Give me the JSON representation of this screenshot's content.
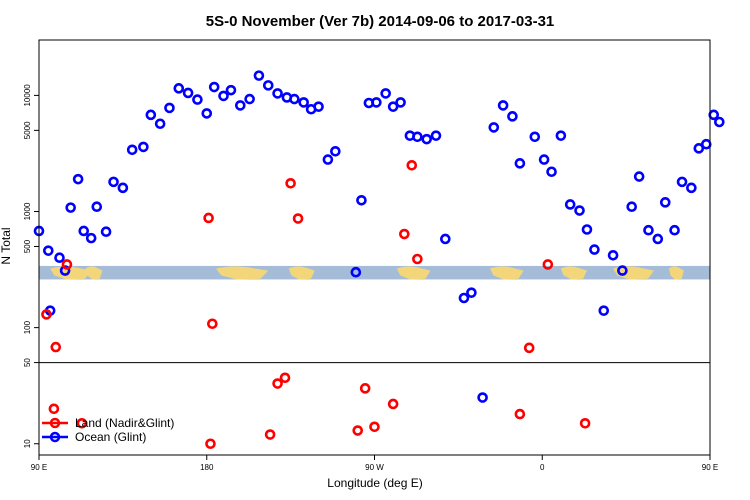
{
  "chart_data": {
    "type": "scatter",
    "title": "5S-0 November (Ver 7b)   2014-09-06 to 2017-03-31",
    "xlabel": "Longitude (deg E)",
    "ylabel": "N Total",
    "x_scale": "longitude_wrapped",
    "y_scale": "log",
    "xlim": [
      90,
      450
    ],
    "ylim": [
      8,
      30000
    ],
    "x_ticks": [
      {
        "value": 90,
        "label": "90 E"
      },
      {
        "value": 180,
        "label": "180"
      },
      {
        "value": 270,
        "label": "90 W"
      },
      {
        "value": 360,
        "label": "0"
      },
      {
        "value": 450,
        "label": "90 E"
      },
      {
        "value": 540,
        "label": "180"
      }
    ],
    "y_ticks": [
      {
        "value": 10,
        "label": "10"
      },
      {
        "value": 50,
        "label": "50"
      },
      {
        "value": 100,
        "label": "100"
      },
      {
        "value": 500,
        "label": "500"
      },
      {
        "value": 1000,
        "label": "1000"
      },
      {
        "value": 5000,
        "label": "5000"
      },
      {
        "value": 10000,
        "label": "10000"
      }
    ],
    "reference_line_y": 50,
    "band": {
      "ymin": 260,
      "ymax": 340
    },
    "legend_position": "bottom-left",
    "series": [
      {
        "name": "Land (Nadir&Glint)",
        "color": "#ff0000",
        "points": [
          [
            94,
            130
          ],
          [
            98,
            20
          ],
          [
            99,
            68
          ],
          [
            105,
            350
          ],
          [
            113,
            15
          ],
          [
            181,
            880
          ],
          [
            183,
            108
          ],
          [
            182,
            10
          ],
          [
            214,
            12
          ],
          [
            218,
            33
          ],
          [
            222,
            37
          ],
          [
            225,
            1750
          ],
          [
            229,
            870
          ],
          [
            261,
            13
          ],
          [
            265,
            30
          ],
          [
            270,
            14
          ],
          [
            280,
            22
          ],
          [
            286,
            640
          ],
          [
            290,
            2500
          ],
          [
            293,
            390
          ],
          [
            348,
            18
          ],
          [
            353,
            67
          ],
          [
            363,
            350
          ],
          [
            383,
            15
          ]
        ]
      },
      {
        "name": "Ocean (Glint)",
        "color": "#0000ff",
        "points": [
          [
            90,
            680
          ],
          [
            95,
            460
          ],
          [
            101,
            400
          ],
          [
            96,
            140
          ],
          [
            104,
            310
          ],
          [
            107,
            1080
          ],
          [
            111,
            1900
          ],
          [
            114,
            680
          ],
          [
            118,
            590
          ],
          [
            121,
            1100
          ],
          [
            126,
            670
          ],
          [
            130,
            1800
          ],
          [
            135,
            1600
          ],
          [
            140,
            3400
          ],
          [
            146,
            3600
          ],
          [
            150,
            6800
          ],
          [
            155,
            5700
          ],
          [
            160,
            7800
          ],
          [
            165,
            11500
          ],
          [
            170,
            10500
          ],
          [
            175,
            9200
          ],
          [
            180,
            7000
          ],
          [
            184,
            11800
          ],
          [
            189,
            9900
          ],
          [
            193,
            11100
          ],
          [
            198,
            8200
          ],
          [
            203,
            9300
          ],
          [
            208,
            14800
          ],
          [
            213,
            12200
          ],
          [
            218,
            10400
          ],
          [
            223,
            9600
          ],
          [
            227,
            9300
          ],
          [
            232,
            8700
          ],
          [
            236,
            7600
          ],
          [
            240,
            8000
          ],
          [
            245,
            2800
          ],
          [
            249,
            3300
          ],
          [
            260,
            300
          ],
          [
            263,
            1250
          ],
          [
            267,
            8600
          ],
          [
            271,
            8700
          ],
          [
            276,
            10400
          ],
          [
            280,
            8000
          ],
          [
            284,
            8700
          ],
          [
            289,
            4500
          ],
          [
            293,
            4400
          ],
          [
            298,
            4200
          ],
          [
            303,
            4500
          ],
          [
            308,
            580
          ],
          [
            318,
            180
          ],
          [
            322,
            200
          ],
          [
            328,
            25
          ],
          [
            334,
            5300
          ],
          [
            339,
            8200
          ],
          [
            344,
            6600
          ],
          [
            348,
            2600
          ],
          [
            356,
            4400
          ],
          [
            361,
            2800
          ],
          [
            365,
            2200
          ],
          [
            370,
            4500
          ],
          [
            375,
            1150
          ],
          [
            380,
            1020
          ],
          [
            384,
            700
          ],
          [
            388,
            470
          ],
          [
            393,
            140
          ],
          [
            398,
            420
          ],
          [
            403,
            310
          ],
          [
            408,
            1100
          ],
          [
            412,
            2000
          ],
          [
            417,
            690
          ],
          [
            422,
            580
          ],
          [
            426,
            1200
          ],
          [
            431,
            690
          ],
          [
            435,
            1800
          ],
          [
            440,
            1600
          ],
          [
            444,
            3500
          ],
          [
            448,
            3800
          ],
          [
            452,
            6800
          ],
          [
            455,
            5900
          ]
        ]
      }
    ]
  }
}
